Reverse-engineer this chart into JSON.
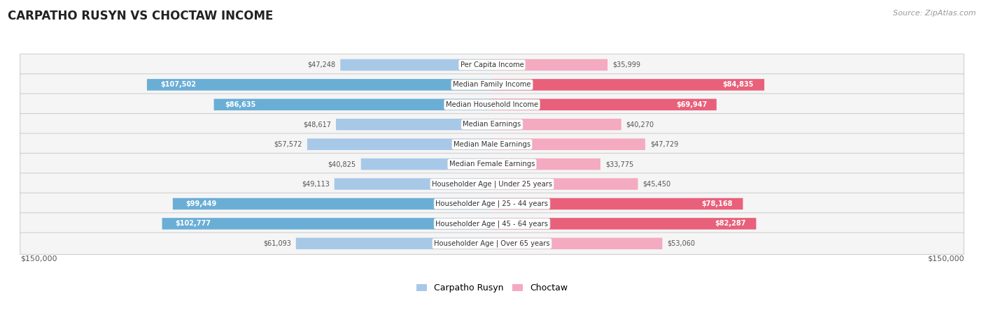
{
  "title": "CARPATHO RUSYN VS CHOCTAW INCOME",
  "source": "Source: ZipAtlas.com",
  "categories": [
    "Per Capita Income",
    "Median Family Income",
    "Median Household Income",
    "Median Earnings",
    "Median Male Earnings",
    "Median Female Earnings",
    "Householder Age | Under 25 years",
    "Householder Age | 25 - 44 years",
    "Householder Age | 45 - 64 years",
    "Householder Age | Over 65 years"
  ],
  "carpatho_rusyn": [
    47248,
    107502,
    86635,
    48617,
    57572,
    40825,
    49113,
    99449,
    102777,
    61093
  ],
  "choctaw": [
    35999,
    84835,
    69947,
    40270,
    47729,
    33775,
    45450,
    78168,
    82287,
    53060
  ],
  "carpatho_rusyn_labels": [
    "$47,248",
    "$107,502",
    "$86,635",
    "$48,617",
    "$57,572",
    "$40,825",
    "$49,113",
    "$99,449",
    "$102,777",
    "$61,093"
  ],
  "choctaw_labels": [
    "$35,999",
    "$84,835",
    "$69,947",
    "$40,270",
    "$47,729",
    "$33,775",
    "$45,450",
    "$78,168",
    "$82,287",
    "$53,060"
  ],
  "max_val": 150000,
  "color_rusyn_light": "#a8c8e8",
  "color_rusyn_dark": "#6aaed6",
  "color_choctaw_light": "#f4aac0",
  "color_choctaw_dark": "#e8607a",
  "rusyn_dark_threshold": 80000,
  "choctaw_dark_threshold": 60000,
  "bg_color": "#ffffff",
  "row_bg_odd": "#f0f0f0",
  "row_bg_even": "#ffffff",
  "label_inside_threshold": 80000,
  "legend_rusyn": "Carpatho Rusyn",
  "legend_choctaw": "Choctaw"
}
